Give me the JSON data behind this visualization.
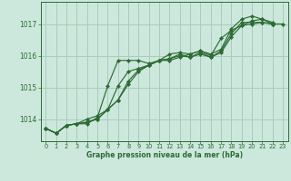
{
  "title": "Graphe pression niveau de la mer (hPa)",
  "bg_color": "#cce8dc",
  "grid_color": "#aaccbb",
  "line_color": "#2d6b35",
  "marker_color": "#2d6b35",
  "xlim": [
    -0.5,
    23.5
  ],
  "ylim": [
    1013.3,
    1017.7
  ],
  "yticks": [
    1014,
    1015,
    1016,
    1017
  ],
  "xticks": [
    0,
    1,
    2,
    3,
    4,
    5,
    6,
    7,
    8,
    9,
    10,
    11,
    12,
    13,
    14,
    15,
    16,
    17,
    18,
    19,
    20,
    21,
    22,
    23
  ],
  "series": [
    [
      1013.7,
      1013.55,
      1013.8,
      1013.85,
      1013.85,
      1014.05,
      1015.05,
      1015.85,
      1015.85,
      1015.85,
      1015.75,
      1015.85,
      1015.85,
      1015.95,
      1016.05,
      1016.15,
      1016.05,
      1016.2,
      1016.85,
      1017.15,
      1017.25,
      1017.15,
      1017.05,
      null
    ],
    [
      1013.7,
      1013.55,
      1013.8,
      1013.85,
      1014.0,
      1014.1,
      1014.3,
      1015.05,
      1015.5,
      1015.6,
      1015.7,
      1015.85,
      1016.05,
      1016.1,
      1016.05,
      1016.15,
      1016.0,
      1016.55,
      1016.8,
      1016.95,
      1017.1,
      1017.15,
      1017.0,
      null
    ],
    [
      1013.7,
      1013.55,
      1013.8,
      1013.85,
      1013.9,
      1014.0,
      1014.3,
      1014.6,
      1015.2,
      1015.55,
      1015.7,
      1015.85,
      1015.9,
      1016.05,
      1015.95,
      1016.1,
      1015.95,
      1016.15,
      1016.7,
      1017.05,
      1017.05,
      1017.05,
      1017.0,
      null
    ],
    [
      1013.7,
      1013.55,
      1013.8,
      1013.85,
      1013.9,
      1014.0,
      1014.3,
      1014.6,
      1015.1,
      1015.5,
      1015.7,
      1015.85,
      1015.9,
      1016.0,
      1015.95,
      1016.05,
      1015.95,
      1016.1,
      1016.6,
      1016.95,
      1017.0,
      1017.05,
      1017.0,
      1017.0
    ]
  ]
}
